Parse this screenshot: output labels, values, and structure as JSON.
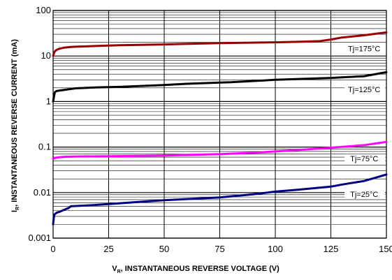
{
  "chart_data": {
    "type": "line",
    "title": "",
    "xlabel": {
      "main": "V",
      "sub": "R",
      "rest": ", INSTANTANEOUS REVERSE VOLTAGE (V)"
    },
    "ylabel": {
      "main": "I",
      "sub": "R",
      "rest": ", INSTANTANEOUS REVERSE CURRENT (mA)"
    },
    "xlim": [
      0,
      150
    ],
    "ylim": [
      0.001,
      100
    ],
    "yscale": "log",
    "grid": true,
    "x_ticks": [
      {
        "value": 0,
        "label": "0"
      },
      {
        "value": 25,
        "label": "25"
      },
      {
        "value": 50,
        "label": "50"
      },
      {
        "value": 75,
        "label": "75"
      },
      {
        "value": 100,
        "label": "100"
      },
      {
        "value": 125,
        "label": "125"
      },
      {
        "value": 150,
        "label": "150"
      }
    ],
    "y_ticks": [
      {
        "value": 0.001,
        "label": "0.001"
      },
      {
        "value": 0.01,
        "label": "0.01"
      },
      {
        "value": 0.1,
        "label": "0.1"
      },
      {
        "value": 1,
        "label": "1"
      },
      {
        "value": 10,
        "label": "10"
      },
      {
        "value": 100,
        "label": "100"
      }
    ],
    "series": [
      {
        "name": "Tj=175°C",
        "color": "#990000",
        "points": [
          [
            0,
            10
          ],
          [
            0.5,
            12
          ],
          [
            1,
            13
          ],
          [
            2,
            14
          ],
          [
            3,
            14.5
          ],
          [
            5,
            15.3
          ],
          [
            8,
            15.8
          ],
          [
            10,
            16
          ],
          [
            20,
            16.6
          ],
          [
            30,
            17.2
          ],
          [
            50,
            18
          ],
          [
            75,
            19.2
          ],
          [
            100,
            20
          ],
          [
            110,
            20.5
          ],
          [
            120,
            21.2
          ],
          [
            125,
            23
          ],
          [
            130,
            25.5
          ],
          [
            140,
            28.5
          ],
          [
            150,
            33
          ]
        ]
      },
      {
        "name": "Tj=125°C",
        "color": "#000000",
        "points": [
          [
            0,
            1
          ],
          [
            0.4,
            1.3
          ],
          [
            0.8,
            1.6
          ],
          [
            1.5,
            1.7
          ],
          [
            3,
            1.75
          ],
          [
            5,
            1.8
          ],
          [
            10,
            1.95
          ],
          [
            20,
            2.05
          ],
          [
            30,
            2.1
          ],
          [
            50,
            2.3
          ],
          [
            60,
            2.45
          ],
          [
            75,
            2.6
          ],
          [
            80,
            2.65
          ],
          [
            100,
            3.0
          ],
          [
            125,
            3.3
          ],
          [
            140,
            3.6
          ],
          [
            150,
            4.4
          ]
        ]
      },
      {
        "name": "Tj=75°C",
        "color": "#ff00ff",
        "points": [
          [
            0,
            0.055
          ],
          [
            1,
            0.058
          ],
          [
            3,
            0.06
          ],
          [
            5,
            0.061
          ],
          [
            10,
            0.062
          ],
          [
            25,
            0.063
          ],
          [
            50,
            0.065
          ],
          [
            75,
            0.07
          ],
          [
            90,
            0.075
          ],
          [
            100,
            0.08
          ],
          [
            110,
            0.086
          ],
          [
            125,
            0.097
          ],
          [
            140,
            0.11
          ],
          [
            150,
            0.13
          ]
        ]
      },
      {
        "name": "Tj=25°C",
        "color": "#000080",
        "points": [
          [
            0,
            0.002
          ],
          [
            0.3,
            0.0028
          ],
          [
            0.6,
            0.0033
          ],
          [
            1.5,
            0.0036
          ],
          [
            3,
            0.0038
          ],
          [
            5,
            0.0042
          ],
          [
            7,
            0.0046
          ],
          [
            8,
            0.005
          ],
          [
            15,
            0.0052
          ],
          [
            25,
            0.0056
          ],
          [
            40,
            0.0063
          ],
          [
            50,
            0.0068
          ],
          [
            75,
            0.0078
          ],
          [
            90,
            0.0092
          ],
          [
            100,
            0.0105
          ],
          [
            110,
            0.0115
          ],
          [
            120,
            0.0128
          ],
          [
            125,
            0.0135
          ],
          [
            130,
            0.015
          ],
          [
            140,
            0.018
          ],
          [
            150,
            0.025
          ]
        ]
      }
    ],
    "annotations": [
      {
        "text": "Tj=175°C",
        "series": 0,
        "x": 140
      },
      {
        "text": "Tj=125°C",
        "series": 1,
        "x": 140
      },
      {
        "text": "Tj=75°C",
        "series": 2,
        "x": 140
      },
      {
        "text": "Tj=25°C",
        "series": 3,
        "x": 140
      }
    ]
  }
}
